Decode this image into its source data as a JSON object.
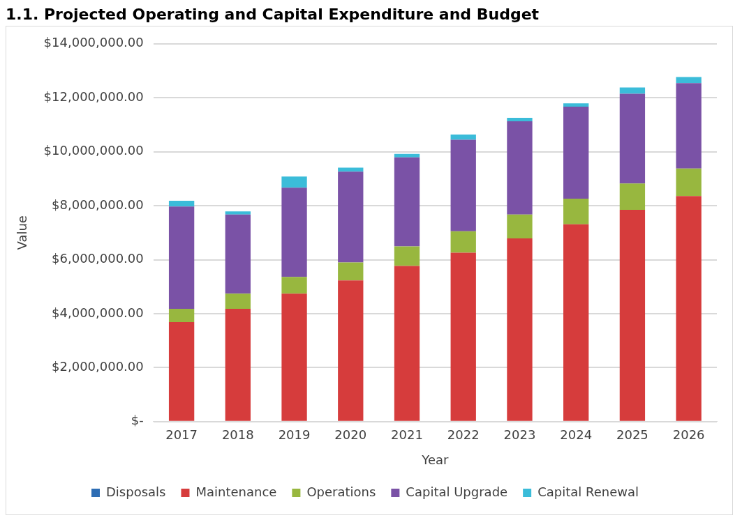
{
  "chart_data": {
    "type": "bar",
    "title": "1.1. Projected Operating and Capital Expenditure and Budget",
    "xlabel": "Year",
    "ylabel": "Value",
    "categories": [
      "2017",
      "2018",
      "2019",
      "2020",
      "2021",
      "2022",
      "2023",
      "2024",
      "2025",
      "2026"
    ],
    "series": [
      {
        "name": "Disposals",
        "color": "#2e6db4",
        "values": [
          0,
          0,
          0,
          0,
          0,
          0,
          0,
          0,
          0,
          0
        ]
      },
      {
        "name": "Maintenance",
        "color": "#d63c3c",
        "values": [
          3690000,
          4180000,
          4740000,
          5230000,
          5770000,
          6260000,
          6790000,
          7310000,
          7850000,
          8360000
        ]
      },
      {
        "name": "Operations",
        "color": "#98b73f",
        "values": [
          490000,
          560000,
          620000,
          670000,
          720000,
          790000,
          880000,
          950000,
          970000,
          1020000
        ]
      },
      {
        "name": "Capital Upgrade",
        "color": "#7a52a6",
        "values": [
          3790000,
          2930000,
          3310000,
          3360000,
          3300000,
          3390000,
          3460000,
          3410000,
          3330000,
          3160000
        ]
      },
      {
        "name": "Capital Renewal",
        "color": "#3bbcd9",
        "values": [
          210000,
          120000,
          410000,
          150000,
          130000,
          200000,
          130000,
          120000,
          230000,
          230000
        ]
      }
    ],
    "stacked": true,
    "ylim": [
      0,
      14000000
    ],
    "yticks": [
      {
        "value": 0,
        "label": "$-"
      },
      {
        "value": 2000000,
        "label": "$2,000,000.00"
      },
      {
        "value": 4000000,
        "label": "$4,000,000.00"
      },
      {
        "value": 6000000,
        "label": "$6,000,000.00"
      },
      {
        "value": 8000000,
        "label": "$8,000,000.00"
      },
      {
        "value": 10000000,
        "label": "$10,000,000.00"
      },
      {
        "value": 12000000,
        "label": "$12,000,000.00"
      },
      {
        "value": 14000000,
        "label": "$14,000,000.00"
      }
    ],
    "grid": "y",
    "legend": "bottom"
  }
}
